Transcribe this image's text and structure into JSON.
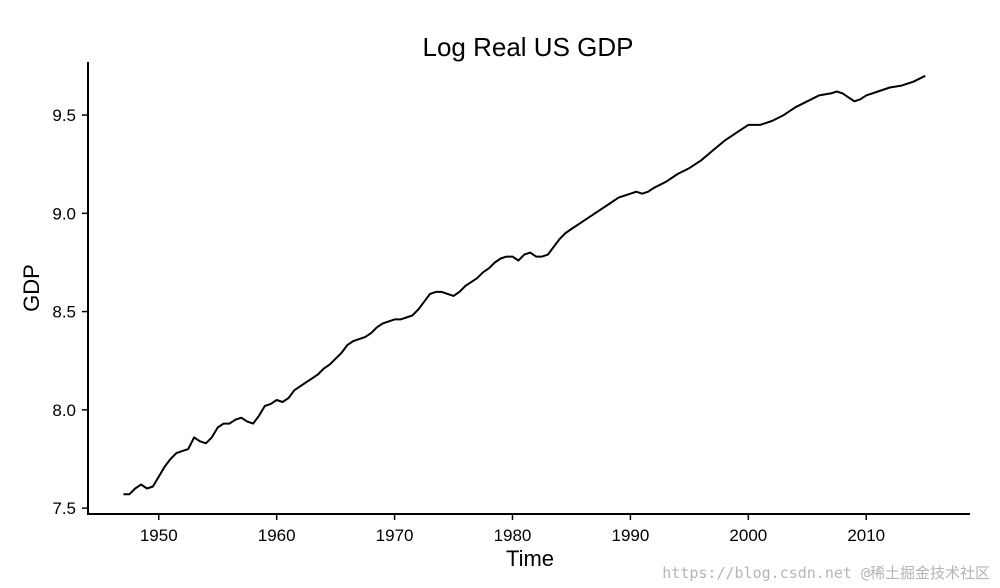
{
  "watermark": "https://blog.csdn.net @稀土掘金技术社区",
  "chart_data": {
    "type": "line",
    "title": "Log Real US GDP",
    "xlabel": "Time",
    "ylabel": "GDP",
    "xlim": [
      1944,
      2018.8
    ],
    "ylim": [
      7.47,
      9.77
    ],
    "xticks": [
      1950,
      1960,
      1970,
      1980,
      1990,
      2000,
      2010
    ],
    "yticks": [
      7.5,
      8.0,
      8.5,
      9.0,
      9.5
    ],
    "ytick_labels": [
      "7.5",
      "8.0",
      "8.5",
      "9.0",
      "9.5"
    ],
    "grid": false,
    "series": [
      {
        "color": "#000000",
        "x": [
          1947.0,
          1947.5,
          1948.0,
          1948.5,
          1949.0,
          1949.5,
          1950.0,
          1950.5,
          1951.0,
          1951.5,
          1952.0,
          1952.5,
          1953.0,
          1953.5,
          1954.0,
          1954.5,
          1955.0,
          1955.5,
          1956.0,
          1956.5,
          1957.0,
          1957.5,
          1958.0,
          1958.5,
          1959.0,
          1959.5,
          1960.0,
          1960.5,
          1961.0,
          1961.5,
          1962.0,
          1962.5,
          1963.0,
          1963.5,
          1964.0,
          1964.5,
          1965.0,
          1965.5,
          1966.0,
          1966.5,
          1967.0,
          1967.5,
          1968.0,
          1968.5,
          1969.0,
          1969.5,
          1970.0,
          1970.5,
          1971.0,
          1971.5,
          1972.0,
          1972.5,
          1973.0,
          1973.5,
          1974.0,
          1974.5,
          1975.0,
          1975.5,
          1976.0,
          1976.5,
          1977.0,
          1977.5,
          1978.0,
          1978.5,
          1979.0,
          1979.5,
          1980.0,
          1980.5,
          1981.0,
          1981.5,
          1982.0,
          1982.5,
          1983.0,
          1983.5,
          1984.0,
          1984.5,
          1985.0,
          1986.0,
          1987.0,
          1988.0,
          1989.0,
          1990.0,
          1990.5,
          1991.0,
          1991.5,
          1992.0,
          1993.0,
          1994.0,
          1995.0,
          1996.0,
          1997.0,
          1998.0,
          1999.0,
          2000.0,
          2000.5,
          2001.0,
          2001.5,
          2002.0,
          2003.0,
          2004.0,
          2005.0,
          2006.0,
          2007.0,
          2007.5,
          2008.0,
          2008.5,
          2009.0,
          2009.5,
          2010.0,
          2011.0,
          2012.0,
          2013.0,
          2014.0,
          2015.0
        ],
        "y": [
          7.57,
          7.57,
          7.6,
          7.62,
          7.6,
          7.61,
          7.66,
          7.71,
          7.75,
          7.78,
          7.79,
          7.8,
          7.86,
          7.84,
          7.83,
          7.86,
          7.91,
          7.93,
          7.93,
          7.95,
          7.96,
          7.94,
          7.93,
          7.97,
          8.02,
          8.03,
          8.05,
          8.04,
          8.06,
          8.1,
          8.12,
          8.14,
          8.16,
          8.18,
          8.21,
          8.23,
          8.26,
          8.29,
          8.33,
          8.35,
          8.36,
          8.37,
          8.39,
          8.42,
          8.44,
          8.45,
          8.46,
          8.46,
          8.47,
          8.48,
          8.51,
          8.55,
          8.59,
          8.6,
          8.6,
          8.59,
          8.58,
          8.6,
          8.63,
          8.65,
          8.67,
          8.7,
          8.72,
          8.75,
          8.77,
          8.78,
          8.78,
          8.76,
          8.79,
          8.8,
          8.78,
          8.78,
          8.79,
          8.83,
          8.87,
          8.9,
          8.92,
          8.96,
          9.0,
          9.04,
          9.08,
          9.1,
          9.11,
          9.1,
          9.11,
          9.13,
          9.16,
          9.2,
          9.23,
          9.27,
          9.32,
          9.37,
          9.41,
          9.45,
          9.45,
          9.45,
          9.46,
          9.47,
          9.5,
          9.54,
          9.57,
          9.6,
          9.61,
          9.62,
          9.61,
          9.59,
          9.57,
          9.58,
          9.6,
          9.62,
          9.64,
          9.65,
          9.67,
          9.7
        ]
      }
    ]
  }
}
